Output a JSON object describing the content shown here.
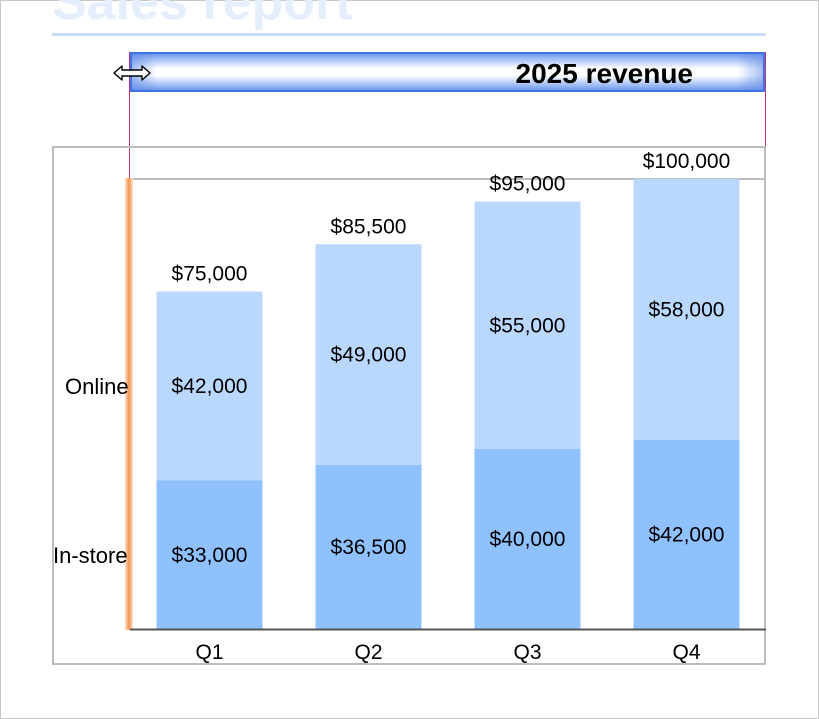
{
  "document": {
    "title": "Sales report"
  },
  "chart_data": {
    "type": "bar",
    "stacked": true,
    "title": "2025 revenue",
    "categories": [
      "Q1",
      "Q2",
      "Q3",
      "Q4"
    ],
    "series": [
      {
        "name": "In-store",
        "values": [
          33000,
          36500,
          40000,
          42000
        ],
        "color": "#8fc1ff"
      },
      {
        "name": "Online",
        "values": [
          42000,
          49000,
          55000,
          58000
        ],
        "color": "#bad8fe"
      }
    ],
    "totals": [
      75000,
      85500,
      95000,
      100000
    ],
    "value_labels": [
      [
        "$33,000",
        "$36,500",
        "$40,000",
        "$42,000"
      ],
      [
        "$42,000",
        "$49,000",
        "$55,000",
        "$58,000"
      ]
    ],
    "total_labels": [
      "$75,000",
      "$85,500",
      "$95,000",
      "$100,000"
    ],
    "ylim": [
      0,
      100000
    ],
    "xlabel": "",
    "ylabel": "",
    "grid": false
  },
  "colors": {
    "accent": "#3f73e0",
    "selection": "#f39a55",
    "guide": "#c0387a"
  },
  "icons": {
    "cursor": "horizontal-resize-cursor-icon"
  }
}
